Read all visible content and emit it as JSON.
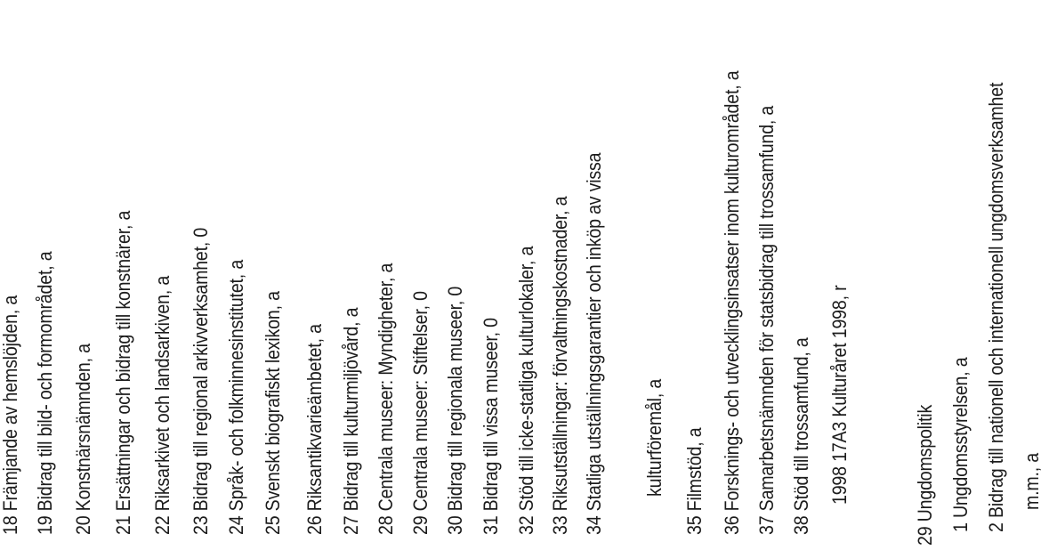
{
  "page": {
    "background": "#ffffff",
    "text_color": "#1c1c1c"
  },
  "chart_data": {
    "type": "bar",
    "axis": "category-x-axis-rotated-labels",
    "legend_position": "none",
    "categories": [
      "18 Främjande av hemslöjden, a",
      "19 Bidrag till bild- och formområdet, a",
      "20 Konstnärsnämnden, a",
      "21 Ersättningar och bidrag till konstnärer, a",
      "22 Riksarkivet och landsarkiven, a",
      "23 Bidrag till regional arkivverksamhet, 0",
      "24 Språk- och folkminnesinstitutet, a",
      "25 Svenskt biografiskt lexikon, a",
      "26 Riksantikvarieämbetet, a",
      "27 Bidrag till kulturmiljövård, a",
      "28 Centrala museer: Myndigheter, a",
      "29 Centrala museer: Stiftelser, 0",
      "30 Bidrag till regionala museer, 0",
      "31 Bidrag till vissa museer, 0",
      "32 Stöd till icke-statliga kulturlokaler, a",
      "33 Riksutställningar: förvaltningskostnader, a",
      "34 Statliga utställningsgarantier och inköp av vissa kulturföremål, a",
      "35 Filmstöd, a",
      "36 Forsknings- och utvecklingsinsatser inom kulturområdet, a",
      "37 Samarbetsnämnden för statsbidrag till trossamfund, a",
      "38 Stöd till trossamfund, a 1998 17A3 Kulturåret 1998, r",
      "29 Ungdomspolitik",
      "1 Ungdomsstyrelsen, a",
      "2 Bidrag till nationell och internationell ungdomsverksamhet m.m., a"
    ]
  },
  "labels": [
    {
      "text": "18 Främjande av hemslöjden, a",
      "role": "item"
    },
    {
      "text": "19 Bidrag till bild- och formområdet, a",
      "role": "item"
    },
    {
      "text": "20 Konstnärsnämnden, a",
      "role": "item"
    },
    {
      "text": "21 Ersättningar och bidrag till konstnärer, a",
      "role": "item"
    },
    {
      "text": "22 Riksarkivet och landsarkiven, a",
      "role": "item"
    },
    {
      "text": "23 Bidrag till regional arkivverksamhet, 0",
      "role": "item"
    },
    {
      "text": "24 Språk- och folkminnesinstitutet, a",
      "role": "item"
    },
    {
      "text": "25 Svenskt biografiskt lexikon, a",
      "role": "item"
    },
    {
      "text": "26 Riksantikvarieämbetet, a",
      "role": "item"
    },
    {
      "text": "27 Bidrag till kulturmiljövård, a",
      "role": "item"
    },
    {
      "text": "28 Centrala museer: Myndigheter, a",
      "role": "item"
    },
    {
      "text": "29 Centrala museer: Stiftelser, 0",
      "role": "item"
    },
    {
      "text": "30 Bidrag till regionala museer, 0",
      "role": "item"
    },
    {
      "text": "31 Bidrag till vissa museer, 0",
      "role": "item"
    },
    {
      "text": "32 Stöd till icke-statliga kulturlokaler, a",
      "role": "item"
    },
    {
      "text": "33 Riksutställningar: förvaltningskostnader, a",
      "role": "item"
    },
    {
      "text": "34 Statliga utställningsgarantier och inköp av vissa",
      "role": "item"
    },
    {
      "text": "kulturföremål, a",
      "role": "continuation"
    },
    {
      "text": "35 Filmstöd, a",
      "role": "item"
    },
    {
      "text": "36 Forsknings- och utvecklingsinsatser inom kulturområdet, a",
      "role": "item"
    },
    {
      "text": "37 Samarbetsnämnden för statsbidrag till trossamfund, a",
      "role": "item"
    },
    {
      "text": "38 Stöd till trossamfund, a",
      "role": "item"
    },
    {
      "text": "1998 17A3 Kulturåret 1998, r",
      "role": "continuation"
    },
    {
      "text": "29 Ungdomspolitik",
      "role": "group-header"
    },
    {
      "text": "1 Ungdomsstyrelsen, a",
      "role": "item"
    },
    {
      "text": "2 Bidrag till nationell och internationell ungdomsverksamhet",
      "role": "item"
    },
    {
      "text": "m.m., a",
      "role": "continuation"
    }
  ]
}
